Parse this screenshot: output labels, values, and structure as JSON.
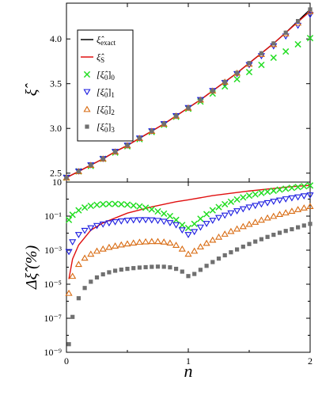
{
  "chart_data": [
    {
      "type": "line",
      "ylabel": "ξ̂",
      "xlim": [
        0,
        2
      ],
      "ylim": [
        2.4,
        4.4
      ],
      "yticks": [
        "2.5",
        "3.0",
        "3.5",
        "4.0"
      ],
      "grid": false,
      "legend_placement": "top-left",
      "x": [
        0,
        0.1,
        0.2,
        0.3,
        0.4,
        0.5,
        0.6,
        0.7,
        0.8,
        0.9,
        1.0,
        1.1,
        1.2,
        1.3,
        1.4,
        1.5,
        1.6,
        1.7,
        1.8,
        1.9,
        2.0
      ],
      "series": [
        {
          "name": "ξ̂exact",
          "style": "line",
          "color": "#000000",
          "values": [
            2.45,
            2.52,
            2.59,
            2.66,
            2.74,
            2.81,
            2.89,
            2.97,
            3.05,
            3.14,
            3.23,
            3.32,
            3.42,
            3.52,
            3.62,
            3.73,
            3.84,
            3.95,
            4.07,
            4.2,
            4.33
          ]
        },
        {
          "name": "ξ̂S",
          "style": "line",
          "color": "#e01010",
          "values": [
            2.45,
            2.52,
            2.59,
            2.66,
            2.74,
            2.81,
            2.89,
            2.97,
            3.05,
            3.14,
            3.23,
            3.32,
            3.42,
            3.52,
            3.62,
            3.73,
            3.84,
            3.95,
            4.07,
            4.19,
            4.31
          ]
        },
        {
          "name": "[ξ̂0]0",
          "style": "x",
          "color": "#22dd22",
          "values": [
            2.45,
            2.52,
            2.58,
            2.66,
            2.73,
            2.8,
            2.88,
            2.96,
            3.04,
            3.13,
            3.22,
            3.3,
            3.39,
            3.47,
            3.55,
            3.63,
            3.71,
            3.79,
            3.86,
            3.94,
            4.01
          ]
        },
        {
          "name": "[ξ̂0]1",
          "style": "triangle-down",
          "color": "#1a1ae0",
          "values": [
            2.45,
            2.52,
            2.59,
            2.66,
            2.74,
            2.81,
            2.89,
            2.97,
            3.05,
            3.14,
            3.23,
            3.32,
            3.42,
            3.51,
            3.61,
            3.71,
            3.81,
            3.92,
            4.03,
            4.15,
            4.27
          ]
        },
        {
          "name": "[ξ̂0]2",
          "style": "triangle-up",
          "color": "#d86a10",
          "values": [
            2.45,
            2.52,
            2.59,
            2.66,
            2.74,
            2.81,
            2.89,
            2.97,
            3.05,
            3.14,
            3.23,
            3.32,
            3.42,
            3.52,
            3.62,
            3.72,
            3.83,
            3.94,
            4.06,
            4.18,
            4.31
          ]
        },
        {
          "name": "[ξ̂0]3",
          "style": "square",
          "color": "#707070",
          "values": [
            2.45,
            2.52,
            2.59,
            2.66,
            2.74,
            2.81,
            2.89,
            2.97,
            3.05,
            3.14,
            3.23,
            3.32,
            3.42,
            3.52,
            3.62,
            3.73,
            3.84,
            3.95,
            4.07,
            4.2,
            4.33
          ]
        }
      ]
    },
    {
      "type": "line",
      "ylabel": "Δξ̂ (%)",
      "xlabel": "n",
      "xlim": [
        0,
        2
      ],
      "xticks": [
        "0",
        "1",
        "2"
      ],
      "yscale": "log",
      "ylim": [
        1e-09,
        10
      ],
      "yticks": [
        "10⁻⁹",
        "10⁻⁷",
        "10⁻⁵",
        "10⁻³",
        "10⁻¹",
        "10"
      ],
      "grid": false,
      "lines": [
        {
          "name": "ξ̂S",
          "color": "#e01010",
          "x": [
            0.02,
            0.05,
            0.1,
            0.2,
            0.3,
            0.5,
            0.7,
            0.9,
            1.0,
            1.2,
            1.5,
            1.8,
            2.0
          ],
          "values": [
            2e-05,
            0.0003,
            0.002,
            0.015,
            0.04,
            0.15,
            0.35,
            0.7,
            0.9,
            1.6,
            3.0,
            5.0,
            6.5
          ]
        }
      ],
      "points": [
        {
          "name": "[ξ̂0]0",
          "color": "#22dd22",
          "marker": "x",
          "x": [
            0.02,
            0.05,
            0.1,
            0.15,
            0.2,
            0.25,
            0.3,
            0.35,
            0.4,
            0.45,
            0.5,
            0.55,
            0.6,
            0.65,
            0.7,
            0.75,
            0.8,
            0.85,
            0.9,
            0.95,
            1.0,
            1.05,
            1.1,
            1.15,
            1.2,
            1.25,
            1.3,
            1.35,
            1.4,
            1.45,
            1.5,
            1.55,
            1.6,
            1.65,
            1.7,
            1.75,
            1.8,
            1.85,
            1.9,
            1.95,
            2.0
          ],
          "values": [
            0.06,
            0.12,
            0.22,
            0.32,
            0.4,
            0.46,
            0.5,
            0.52,
            0.52,
            0.5,
            0.47,
            0.42,
            0.37,
            0.31,
            0.25,
            0.19,
            0.14,
            0.1,
            0.06,
            0.03,
            0.02,
            0.035,
            0.07,
            0.13,
            0.22,
            0.34,
            0.5,
            0.7,
            0.95,
            1.25,
            1.6,
            1.9,
            2.3,
            2.7,
            3.1,
            3.6,
            4.1,
            4.6,
            5.1,
            5.7,
            6.3
          ]
        },
        {
          "name": "[ξ̂0]1",
          "color": "#1a1ae0",
          "marker": "triangle-down",
          "x": [
            0.02,
            0.05,
            0.1,
            0.15,
            0.2,
            0.25,
            0.3,
            0.35,
            0.4,
            0.45,
            0.5,
            0.55,
            0.6,
            0.65,
            0.7,
            0.75,
            0.8,
            0.85,
            0.9,
            0.95,
            1.0,
            1.05,
            1.1,
            1.15,
            1.2,
            1.25,
            1.3,
            1.35,
            1.4,
            1.45,
            1.5,
            1.55,
            1.6,
            1.65,
            1.7,
            1.75,
            1.8,
            1.85,
            1.9,
            1.95,
            2.0
          ],
          "values": [
            0.0008,
            0.003,
            0.008,
            0.014,
            0.02,
            0.027,
            0.033,
            0.039,
            0.045,
            0.05,
            0.055,
            0.058,
            0.06,
            0.06,
            0.058,
            0.054,
            0.048,
            0.04,
            0.03,
            0.015,
            0.008,
            0.012,
            0.022,
            0.036,
            0.055,
            0.08,
            0.11,
            0.15,
            0.2,
            0.26,
            0.33,
            0.41,
            0.5,
            0.6,
            0.72,
            0.85,
            1.0,
            1.15,
            1.3,
            1.5,
            1.7
          ]
        },
        {
          "name": "[ξ̂0]2",
          "color": "#d86a10",
          "marker": "triangle-up",
          "x": [
            0.02,
            0.05,
            0.1,
            0.15,
            0.2,
            0.25,
            0.3,
            0.35,
            0.4,
            0.45,
            0.5,
            0.55,
            0.6,
            0.65,
            0.7,
            0.75,
            0.8,
            0.85,
            0.9,
            0.95,
            1.0,
            1.05,
            1.1,
            1.15,
            1.2,
            1.25,
            1.3,
            1.35,
            1.4,
            1.45,
            1.5,
            1.55,
            1.6,
            1.65,
            1.7,
            1.75,
            1.8,
            1.85,
            1.9,
            1.95,
            2.0
          ],
          "values": [
            3e-06,
            3e-05,
            0.00015,
            0.00035,
            0.0006,
            0.0009,
            0.0012,
            0.0015,
            0.0018,
            0.0021,
            0.0024,
            0.0027,
            0.003,
            0.0032,
            0.0033,
            0.0033,
            0.0031,
            0.0027,
            0.002,
            0.0012,
            0.0006,
            0.0009,
            0.0016,
            0.0026,
            0.004,
            0.006,
            0.009,
            0.013,
            0.018,
            0.025,
            0.034,
            0.045,
            0.06,
            0.08,
            0.1,
            0.13,
            0.16,
            0.2,
            0.25,
            0.31,
            0.38
          ]
        },
        {
          "name": "[ξ̂0]3",
          "color": "#707070",
          "marker": "square",
          "x": [
            0.02,
            0.05,
            0.1,
            0.15,
            0.2,
            0.25,
            0.3,
            0.35,
            0.4,
            0.45,
            0.5,
            0.55,
            0.6,
            0.65,
            0.7,
            0.75,
            0.8,
            0.85,
            0.9,
            0.95,
            1.0,
            1.05,
            1.1,
            1.15,
            1.2,
            1.25,
            1.3,
            1.35,
            1.4,
            1.45,
            1.5,
            1.55,
            1.6,
            1.65,
            1.7,
            1.75,
            1.8,
            1.85,
            1.9,
            1.95,
            2.0
          ],
          "values": [
            3e-09,
            1.2e-07,
            1.5e-06,
            6e-06,
            1.4e-05,
            2.5e-05,
            3.8e-05,
            5e-05,
            6.2e-05,
            7.2e-05,
            8e-05,
            8.8e-05,
            9.5e-05,
            0.0001,
            0.000105,
            0.000108,
            0.000106,
            9.8e-05,
            8e-05,
            5.5e-05,
            3e-05,
            4e-05,
            7e-05,
            0.00012,
            0.0002,
            0.00032,
            0.0005,
            0.00075,
            0.0011,
            0.0016,
            0.0023,
            0.0032,
            0.0044,
            0.006,
            0.008,
            0.0105,
            0.0135,
            0.017,
            0.022,
            0.028,
            0.035
          ]
        }
      ]
    }
  ],
  "legend": [
    {
      "name": "ξ̂exact",
      "base": "ξ̂",
      "sub": "exact",
      "symbol": "line",
      "color": "#000000"
    },
    {
      "name": "ξ̂S",
      "base": "ξ̂",
      "sub": "S",
      "symbol": "line",
      "color": "#e01010"
    },
    {
      "name": "[ξ̂0]0",
      "base": "[ξ̂",
      "mid": "0",
      "tail": "]",
      "sub": "0",
      "symbol": "x",
      "color": "#22dd22"
    },
    {
      "name": "[ξ̂0]1",
      "base": "[ξ̂",
      "mid": "0",
      "tail": "]",
      "sub": "1",
      "symbol": "triangle-down",
      "color": "#1a1ae0"
    },
    {
      "name": "[ξ̂0]2",
      "base": "[ξ̂",
      "mid": "0",
      "tail": "]",
      "sub": "2",
      "symbol": "triangle-up",
      "color": "#d86a10"
    },
    {
      "name": "[ξ̂0]3",
      "base": "[ξ̂",
      "mid": "0",
      "tail": "]",
      "sub": "3",
      "symbol": "square",
      "color": "#707070"
    }
  ]
}
